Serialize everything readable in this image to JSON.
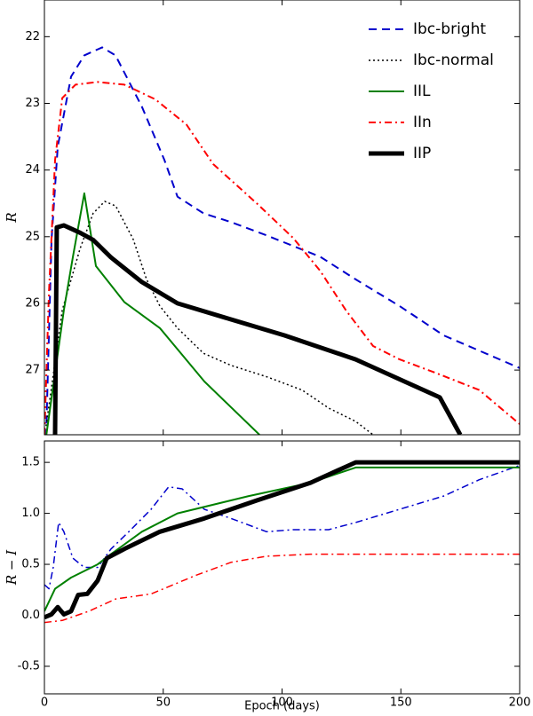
{
  "chart_data": [
    {
      "type": "line",
      "ylabel": "R",
      "xlim": [
        0,
        200
      ],
      "xticks": [
        0,
        50,
        100,
        150,
        200
      ],
      "ylim": [
        27.97,
        21.45
      ],
      "yticks": [
        22,
        23,
        24,
        25,
        26,
        27
      ],
      "legend": "upper right",
      "series": [
        {
          "name": "Ibc-bright",
          "color": "#0000cc",
          "linestyle": "dashed",
          "linewidth": 2,
          "x": [
            0.7,
            3,
            5.6,
            11.2,
            16.8,
            24.3,
            29.9,
            41,
            50.5,
            56,
            67,
            78.5,
            93.5,
            104.7,
            116,
            131,
            149.5,
            168,
            200
          ],
          "values": [
            28,
            25.05,
            23.65,
            22.6,
            22.28,
            22.16,
            22.28,
            23.05,
            23.85,
            24.4,
            24.65,
            24.78,
            24.98,
            25.14,
            25.3,
            25.64,
            26.04,
            26.48,
            26.97
          ]
        },
        {
          "name": "Ibc-normal",
          "color": "#000000",
          "linestyle": "dotted",
          "linewidth": 1.5,
          "x": [
            0.7,
            7.5,
            15,
            20.5,
            25.4,
            30,
            37.4,
            43,
            48.6,
            56,
            67,
            78.5,
            93.5,
            108.4,
            119.6,
            131,
            138.3
          ],
          "values": [
            27.84,
            26.1,
            25.18,
            24.65,
            24.47,
            24.54,
            25.04,
            25.64,
            26.04,
            26.37,
            26.75,
            26.93,
            27.1,
            27.3,
            27.57,
            27.77,
            27.97
          ]
        },
        {
          "name": "IIL",
          "color": "#008000",
          "linestyle": "solid",
          "linewidth": 2,
          "x": [
            0.7,
            8.2,
            12,
            16.8,
            21.7,
            33.6,
            48.6,
            67.3,
            90.5
          ],
          "values": [
            28,
            26.1,
            25.3,
            24.35,
            25.44,
            25.98,
            26.37,
            27.17,
            27.97
          ]
        },
        {
          "name": "IIn",
          "color": "#ff0000",
          "linestyle": "dashdot",
          "linewidth": 2,
          "x": [
            0,
            1.9,
            4.5,
            7.5,
            13.1,
            22.4,
            33.6,
            46.7,
            59.8,
            71,
            89.7,
            104.7,
            116,
            127,
            138.3,
            149.5,
            164.5,
            183,
            200
          ],
          "values": [
            27.97,
            25.84,
            23.85,
            22.92,
            22.72,
            22.68,
            22.72,
            22.94,
            23.32,
            23.91,
            24.51,
            25.02,
            25.51,
            26.11,
            26.64,
            26.84,
            27.04,
            27.3,
            27.81
          ]
        },
        {
          "name": "IIP",
          "color": "#000000",
          "linestyle": "solid",
          "linewidth": 5,
          "x": [
            4.5,
            5.2,
            8.2,
            15,
            20.6,
            28,
            41,
            56,
            78.5,
            101,
            131,
            153.3,
            166.4,
            175
          ],
          "values": [
            27.97,
            24.86,
            24.83,
            24.94,
            25.05,
            25.31,
            25.68,
            26.0,
            26.24,
            26.48,
            26.84,
            27.2,
            27.41,
            27.97
          ]
        }
      ]
    },
    {
      "type": "line",
      "ylabel": "R − I",
      "xlabel": "Epoch (days)",
      "xlim": [
        0,
        200
      ],
      "xticks": [
        0,
        50,
        100,
        150,
        200
      ],
      "ylim": [
        -0.77,
        1.71
      ],
      "yticks": [
        1.5,
        {
          "value": 1,
          "label": "1.0"
        },
        0.5,
        {
          "value": 0,
          "label": "0.0"
        },
        -0.5
      ],
      "series": [
        {
          "color": "#0000cc",
          "linestyle": "dashdot",
          "linewidth": 1.5,
          "x": [
            0,
            1.9,
            3.7,
            6,
            8.2,
            12,
            16.8,
            22.4,
            28,
            35.5,
            44.9,
            52.3,
            58,
            67.3,
            78.5,
            93.5,
            104.7,
            119.6,
            131,
            149.5,
            168,
            183,
            200
          ],
          "values": [
            0.3,
            0.26,
            0.47,
            0.91,
            0.82,
            0.56,
            0.47,
            0.47,
            0.65,
            0.82,
            1.04,
            1.26,
            1.24,
            1.04,
            0.95,
            0.82,
            0.84,
            0.84,
            0.91,
            1.04,
            1.17,
            1.33,
            1.47
          ]
        },
        {
          "color": "#ff0000",
          "linestyle": "dashdot",
          "linewidth": 1.5,
          "x": [
            0,
            7.5,
            18.7,
            30,
            44.9,
            63.5,
            78.5,
            93.5,
            112,
            138.3,
            200
          ],
          "values": [
            -0.07,
            -0.05,
            0.04,
            0.16,
            0.21,
            0.39,
            0.52,
            0.58,
            0.6,
            0.6,
            0.6
          ]
        },
        {
          "color": "#008000",
          "linestyle": "solid",
          "linewidth": 2,
          "x": [
            0,
            4.5,
            11.2,
            22.4,
            28,
            41,
            56,
            86,
            112,
            131,
            200
          ],
          "values": [
            0.04,
            0.26,
            0.37,
            0.5,
            0.6,
            0.82,
            1.0,
            1.17,
            1.3,
            1.45,
            1.45
          ]
        },
        {
          "color": "#000000",
          "linestyle": "solid",
          "linewidth": 5,
          "x": [
            0,
            3,
            5.6,
            8.2,
            11.2,
            14.2,
            18,
            22.4,
            26.2,
            33.6,
            48.6,
            67.3,
            89.7,
            112,
            131,
            200
          ],
          "values": [
            -0.02,
            0.01,
            0.08,
            0.01,
            0.04,
            0.2,
            0.21,
            0.34,
            0.56,
            0.65,
            0.82,
            0.95,
            1.13,
            1.3,
            1.5,
            1.5
          ]
        }
      ]
    }
  ]
}
